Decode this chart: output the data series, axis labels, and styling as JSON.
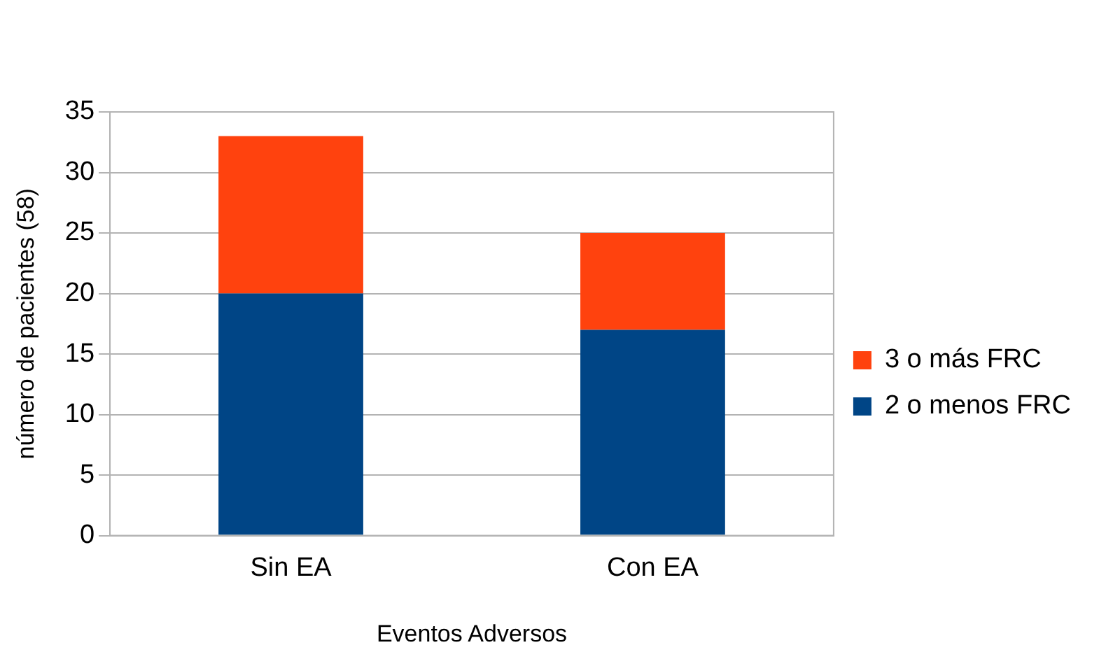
{
  "chart_data": {
    "type": "bar",
    "xlabel": "Eventos Adversos",
    "ylabel": "número de pacientes (58)",
    "categories": [
      "Sin EA",
      "Con EA"
    ],
    "series": [
      {
        "name": "2 o menos FRC",
        "color": "#004586",
        "values": [
          20,
          17
        ]
      },
      {
        "name": "3 o más FRC",
        "color": "#ff420e",
        "values": [
          13,
          8
        ]
      }
    ],
    "stacked": true,
    "ylim": [
      0,
      35
    ],
    "yticks": [
      0,
      5,
      10,
      15,
      20,
      25,
      30,
      35
    ],
    "grid": "y",
    "legend": "right"
  }
}
